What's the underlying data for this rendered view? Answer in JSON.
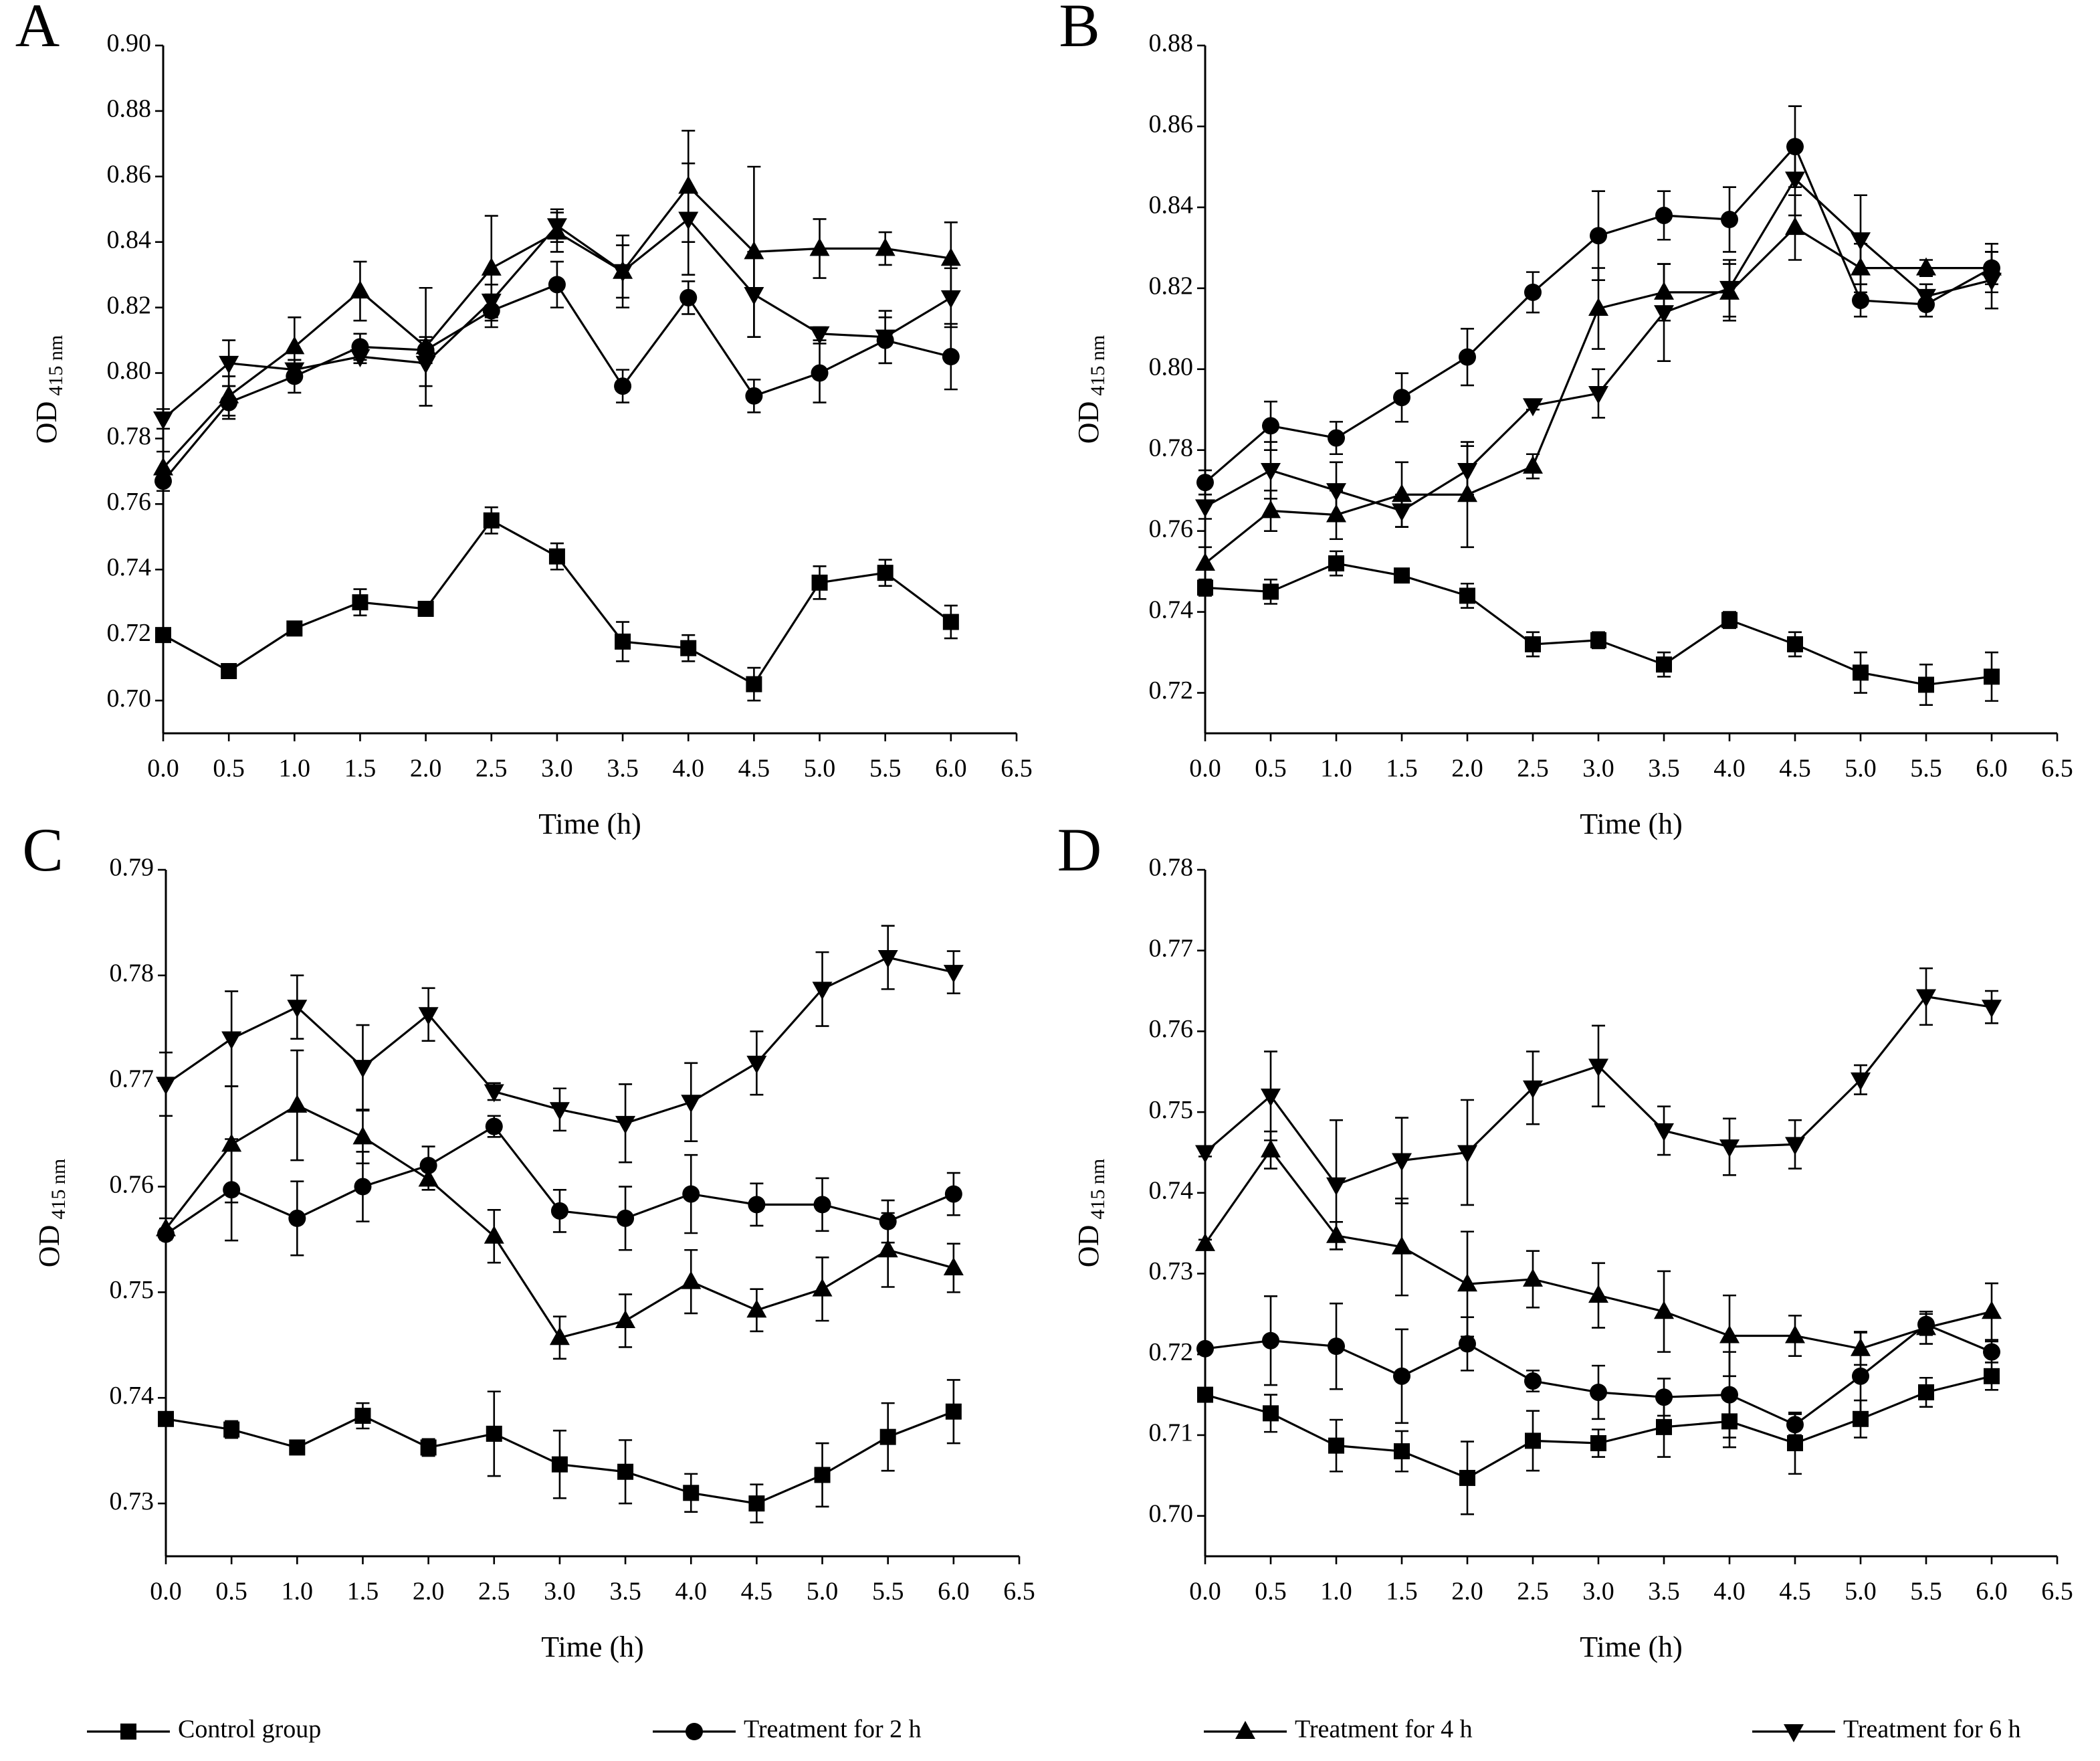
{
  "chart_data": [
    {
      "type": "line",
      "panel_label": "A",
      "xlabel": "Time (h)",
      "ylabel": "OD",
      "ylabel_sub": "415 nm",
      "x": [
        0,
        0.5,
        1,
        1.5,
        2,
        2.5,
        3,
        3.5,
        4,
        4.5,
        5,
        5.5,
        6
      ],
      "xlim": [
        0,
        6.5
      ],
      "xticks": [
        {
          "value": 0,
          "label": "0.0"
        },
        0.5,
        {
          "value": 1,
          "label": "1.0"
        },
        1.5,
        {
          "value": 2,
          "label": "2.0"
        },
        2.5,
        {
          "value": 3,
          "label": "3.0"
        },
        3.5,
        {
          "value": 4,
          "label": "4.0"
        },
        4.5,
        {
          "value": 5,
          "label": "5.0"
        },
        5.5,
        {
          "value": 6,
          "label": "6.0"
        },
        6.5
      ],
      "ylim": [
        0.69,
        0.9
      ],
      "yticks": [
        {
          "value": 0.7,
          "label": "0.70"
        },
        0.72,
        0.74,
        0.76,
        0.78,
        {
          "value": 0.8,
          "label": "0.80"
        },
        0.82,
        0.84,
        0.86,
        0.88,
        {
          "value": 0.9,
          "label": "0.90"
        }
      ],
      "series": [
        {
          "name": "Control group",
          "marker": "square",
          "color": "#000000",
          "values": [
            0.72,
            0.709,
            0.722,
            0.73,
            0.728,
            0.755,
            0.744,
            0.718,
            0.716,
            0.705,
            0.736,
            0.739,
            0.724
          ],
          "errors": [
            0.002,
            0.002,
            0.001,
            0.004,
            0.001,
            0.004,
            0.004,
            0.006,
            0.004,
            0.005,
            0.005,
            0.004,
            0.005
          ]
        },
        {
          "name": "Treatment for 2 h",
          "marker": "circle",
          "color": "#000000",
          "values": [
            0.767,
            0.791,
            0.799,
            0.808,
            0.807,
            0.819,
            0.827,
            0.796,
            0.823,
            0.793,
            0.8,
            0.81,
            0.805
          ],
          "errors": [
            0.003,
            0.005,
            0.005,
            0.004,
            0.004,
            0.005,
            0.007,
            0.005,
            0.005,
            0.005,
            0.009,
            0.007,
            0.01
          ]
        },
        {
          "name": "Treatment for 4 h",
          "marker": "triangle-up",
          "color": "#000000",
          "values": [
            0.771,
            0.793,
            0.808,
            0.825,
            0.808,
            0.832,
            0.843,
            0.831,
            0.857,
            0.837,
            0.838,
            0.838,
            0.835
          ],
          "errors": [
            0.005,
            0.006,
            0.009,
            0.009,
            0.018,
            0.016,
            0.006,
            0.011,
            0.017,
            0.026,
            0.009,
            0.005,
            0.011
          ]
        },
        {
          "name": "Treatment for 6 h",
          "marker": "triangle-down",
          "color": "#000000",
          "values": [
            0.786,
            0.803,
            0.801,
            0.805,
            0.803,
            0.822,
            0.845,
            0.831,
            0.847,
            0.824,
            0.812,
            0.811,
            0.823
          ],
          "errors": [
            0.003,
            0.007,
            0.003,
            0.002,
            0.007,
            0.005,
            0.005,
            0.008,
            0.017,
            0.013,
            0.002,
            0.008,
            0.009
          ]
        }
      ]
    },
    {
      "type": "line",
      "panel_label": "B",
      "xlabel": "Time (h)",
      "ylabel": "OD",
      "ylabel_sub": "415 nm",
      "x": [
        0,
        0.5,
        1,
        1.5,
        2,
        2.5,
        3,
        3.5,
        4,
        4.5,
        5,
        5.5,
        6
      ],
      "xlim": [
        0,
        6.5
      ],
      "xticks": [
        {
          "value": 0,
          "label": "0.0"
        },
        0.5,
        {
          "value": 1,
          "label": "1.0"
        },
        1.5,
        {
          "value": 2,
          "label": "2.0"
        },
        2.5,
        {
          "value": 3,
          "label": "3.0"
        },
        3.5,
        {
          "value": 4,
          "label": "4.0"
        },
        4.5,
        {
          "value": 5,
          "label": "5.0"
        },
        5.5,
        {
          "value": 6,
          "label": "6.0"
        },
        6.5
      ],
      "ylim": [
        0.71,
        0.88
      ],
      "yticks": [
        0.72,
        0.74,
        0.76,
        0.78,
        {
          "value": 0.8,
          "label": "0.80"
        },
        0.82,
        0.84,
        0.86,
        0.88
      ],
      "series": [
        {
          "marker": "square",
          "color": "#000000",
          "values": [
            0.746,
            0.745,
            0.752,
            0.749,
            0.744,
            0.732,
            0.733,
            0.727,
            0.738,
            0.732,
            0.725,
            0.722,
            0.724
          ],
          "errors": [
            0.002,
            0.003,
            0.003,
            0.001,
            0.003,
            0.003,
            0.002,
            0.003,
            0.002,
            0.003,
            0.005,
            0.005,
            0.006
          ]
        },
        {
          "marker": "circle",
          "color": "#000000",
          "values": [
            0.772,
            0.786,
            0.783,
            0.793,
            0.803,
            0.819,
            0.833,
            0.838,
            0.837,
            0.855,
            0.817,
            0.816,
            0.825
          ],
          "errors": [
            0.003,
            0.006,
            0.004,
            0.006,
            0.007,
            0.005,
            0.011,
            0.006,
            0.008,
            0.01,
            0.004,
            0.003,
            0.004
          ]
        },
        {
          "marker": "triangle-up",
          "color": "#000000",
          "values": [
            0.752,
            0.765,
            0.764,
            0.769,
            0.769,
            0.776,
            0.815,
            0.819,
            0.819,
            0.835,
            0.825,
            0.825,
            0.825
          ],
          "errors": [
            0.004,
            0.005,
            0.006,
            0.008,
            0.013,
            0.003,
            0.01,
            0.007,
            0.007,
            0.008,
            0.006,
            0.002,
            0.006
          ]
        },
        {
          "marker": "triangle-down",
          "color": "#000000",
          "values": [
            0.766,
            0.775,
            0.77,
            0.765,
            0.775,
            0.791,
            0.794,
            0.814,
            0.82,
            0.847,
            0.832,
            0.818,
            0.822
          ],
          "errors": [
            0.003,
            0.007,
            0.007,
            0.004,
            0.006,
            0.001,
            0.006,
            0.012,
            0.007,
            0.009,
            0.011,
            0.003,
            0.007
          ]
        }
      ]
    },
    {
      "type": "line",
      "panel_label": "C",
      "xlabel": "Time (h)",
      "ylabel": "OD",
      "ylabel_sub": "415 nm",
      "x": [
        0,
        0.5,
        1,
        1.5,
        2,
        2.5,
        3,
        3.5,
        4,
        4.5,
        5,
        5.5,
        6
      ],
      "xlim": [
        0,
        6.5
      ],
      "xticks": [
        {
          "value": 0,
          "label": "0.0"
        },
        0.5,
        {
          "value": 1,
          "label": "1.0"
        },
        1.5,
        {
          "value": 2,
          "label": "2.0"
        },
        2.5,
        {
          "value": 3,
          "label": "3.0"
        },
        3.5,
        {
          "value": 4,
          "label": "4.0"
        },
        4.5,
        {
          "value": 5,
          "label": "5.0"
        },
        5.5,
        {
          "value": 6,
          "label": "6.0"
        },
        6.5
      ],
      "ylim": [
        0.725,
        0.79
      ],
      "yticks": [
        0.73,
        0.74,
        0.75,
        0.76,
        0.77,
        0.78,
        0.79
      ],
      "series": [
        {
          "marker": "square",
          "color": "#000000",
          "values": [
            0.738,
            0.737,
            0.7353,
            0.7383,
            0.7353,
            0.7366,
            0.7337,
            0.733,
            0.731,
            0.73,
            0.7327,
            0.7363,
            0.7387
          ],
          "errors": [
            0.0005,
            0.0008,
            0.0003,
            0.0012,
            0.0008,
            0.004,
            0.0032,
            0.003,
            0.0018,
            0.0018,
            0.003,
            0.0032,
            0.003
          ]
        },
        {
          "marker": "circle",
          "color": "#000000",
          "values": [
            0.7555,
            0.7597,
            0.757,
            0.76,
            0.762,
            0.7657,
            0.7577,
            0.757,
            0.7593,
            0.7583,
            0.7583,
            0.7567,
            0.7593
          ],
          "errors": [
            0.0005,
            0.0048,
            0.0035,
            0.0033,
            0.0018,
            0.001,
            0.002,
            0.003,
            0.0037,
            0.002,
            0.0025,
            0.002,
            0.002
          ]
        },
        {
          "marker": "triangle-up",
          "color": "#000000",
          "values": [
            0.756,
            0.764,
            0.7677,
            0.7647,
            0.7607,
            0.7553,
            0.7457,
            0.7473,
            0.751,
            0.7483,
            0.7503,
            0.754,
            0.7523
          ],
          "errors": [
            0.001,
            0.0055,
            0.0052,
            0.0025,
            0.001,
            0.0025,
            0.002,
            0.0025,
            0.003,
            0.002,
            0.003,
            0.0035,
            0.0023
          ]
        },
        {
          "marker": "triangle-down",
          "color": "#000000",
          "values": [
            0.7697,
            0.774,
            0.777,
            0.7713,
            0.7763,
            0.769,
            0.7673,
            0.766,
            0.768,
            0.7717,
            0.7787,
            0.7817,
            0.7803
          ],
          "errors": [
            0.003,
            0.0045,
            0.003,
            0.004,
            0.0025,
            0.0008,
            0.002,
            0.0037,
            0.0037,
            0.003,
            0.0035,
            0.003,
            0.002
          ]
        }
      ]
    },
    {
      "type": "line",
      "panel_label": "D",
      "xlabel": "Time (h)",
      "ylabel": "OD",
      "ylabel_sub": "415 nm",
      "x": [
        0,
        0.5,
        1,
        1.5,
        2,
        2.5,
        3,
        3.5,
        4,
        4.5,
        5,
        5.5,
        6
      ],
      "xlim": [
        0,
        6.5
      ],
      "xticks": [
        {
          "value": 0,
          "label": "0.0"
        },
        0.5,
        {
          "value": 1,
          "label": "1.0"
        },
        1.5,
        {
          "value": 2,
          "label": "2.0"
        },
        2.5,
        {
          "value": 3,
          "label": "3.0"
        },
        3.5,
        {
          "value": 4,
          "label": "4.0"
        },
        4.5,
        {
          "value": 5,
          "label": "5.0"
        },
        5.5,
        {
          "value": 6,
          "label": "6.0"
        },
        6.5
      ],
      "ylim": [
        0.695,
        0.78
      ],
      "yticks": [
        {
          "value": 0.7,
          "label": "0.70"
        },
        0.71,
        0.72,
        0.73,
        0.74,
        0.75,
        0.76,
        0.77,
        0.78
      ],
      "series": [
        {
          "marker": "square",
          "color": "#000000",
          "values": [
            0.715,
            0.7127,
            0.7087,
            0.708,
            0.7047,
            0.7093,
            0.709,
            0.711,
            0.7117,
            0.709,
            0.712,
            0.7153,
            0.7173
          ],
          "errors": [
            0.0005,
            0.0023,
            0.0032,
            0.0025,
            0.0045,
            0.0037,
            0.0017,
            0.0037,
            0.0032,
            0.0038,
            0.0023,
            0.0018,
            0.0017
          ]
        },
        {
          "marker": "circle",
          "color": "#000000",
          "values": [
            0.7207,
            0.7217,
            0.721,
            0.7173,
            0.7213,
            0.7167,
            0.7153,
            0.7147,
            0.715,
            0.7113,
            0.7173,
            0.7237,
            0.7203
          ],
          "errors": [
            0.0005,
            0.0055,
            0.0053,
            0.0058,
            0.0033,
            0.0013,
            0.0033,
            0.0023,
            0.0053,
            0.0013,
            0.0055,
            0.0013,
            0.0013
          ]
        },
        {
          "marker": "triangle-up",
          "color": "#000000",
          "values": [
            0.7337,
            0.7453,
            0.7347,
            0.7333,
            0.7287,
            0.7293,
            0.7273,
            0.7253,
            0.7223,
            0.7223,
            0.7207,
            0.7233,
            0.7253
          ],
          "errors": [
            0.0005,
            0.0023,
            0.0017,
            0.006,
            0.0065,
            0.0035,
            0.004,
            0.005,
            0.005,
            0.0025,
            0.002,
            0.002,
            0.0035
          ]
        },
        {
          "marker": "triangle-down",
          "color": "#000000",
          "values": [
            0.745,
            0.752,
            0.741,
            0.744,
            0.745,
            0.753,
            0.7557,
            0.7477,
            0.7457,
            0.746,
            0.754,
            0.7643,
            0.763
          ],
          "errors": [
            0.0005,
            0.0055,
            0.008,
            0.0053,
            0.0065,
            0.0045,
            0.005,
            0.003,
            0.0035,
            0.003,
            0.0018,
            0.0035,
            0.002
          ]
        }
      ]
    }
  ]
}
